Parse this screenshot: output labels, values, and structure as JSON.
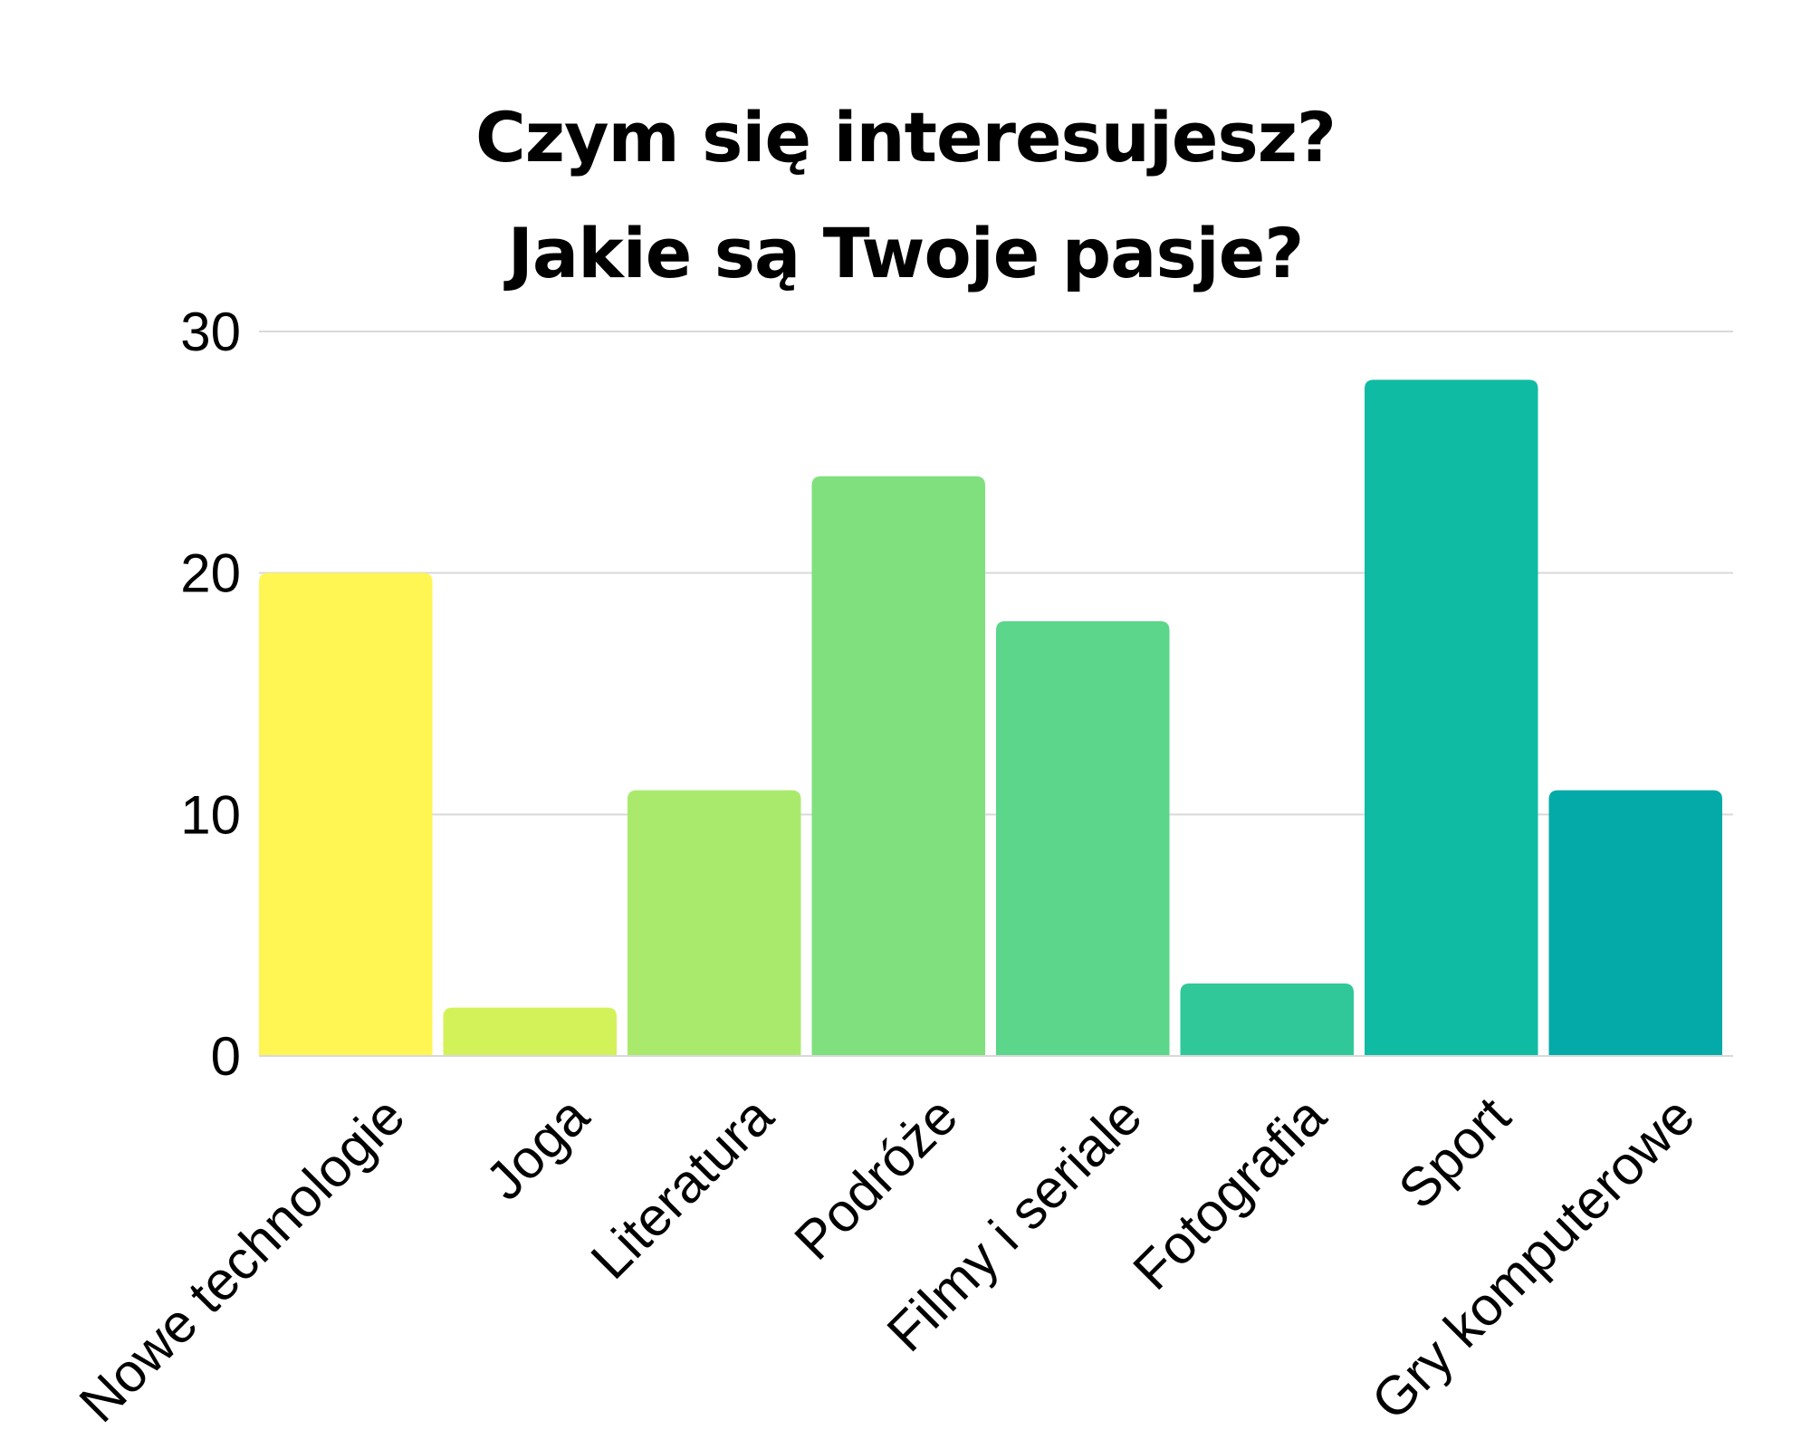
{
  "chart_data": {
    "type": "bar",
    "title": "Czym się interesujesz?",
    "subtitle": "Jakie są Twoje pasje?",
    "categories": [
      "Nowe technologie",
      "Joga",
      "Literatura",
      "Podróże",
      "Filmy i seriale",
      "Fotografia",
      "Sport",
      "Gry komputerowe"
    ],
    "values": [
      20,
      2,
      11,
      24,
      18,
      3,
      28,
      11
    ],
    "colors": [
      "#fff654",
      "#d3f25a",
      "#a9ea6d",
      "#7fe07d",
      "#5bd68b",
      "#30c899",
      "#10bba4",
      "#04aaa8"
    ],
    "xlabel": "",
    "ylabel": "",
    "ylim": [
      0,
      30
    ],
    "yticks": [
      0,
      10,
      20,
      30
    ],
    "grid": true,
    "grid_color": "#d9d9d9"
  }
}
